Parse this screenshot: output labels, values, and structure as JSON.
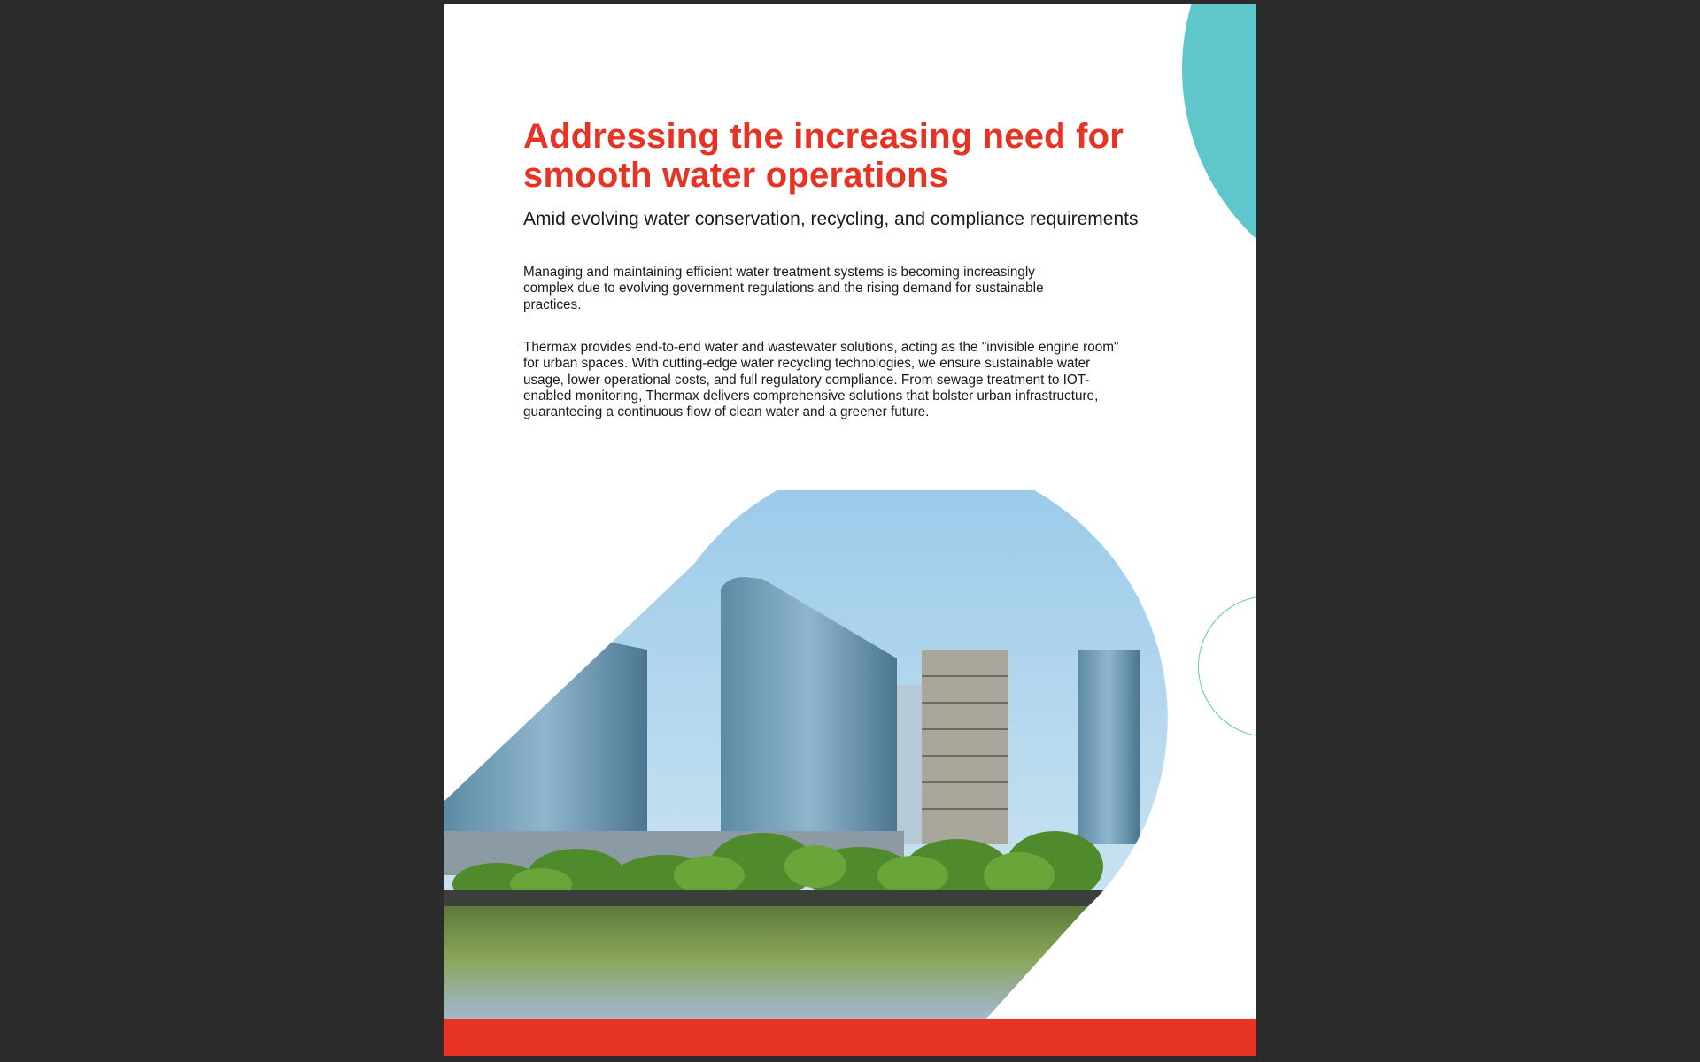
{
  "document": {
    "title": "Addressing the increasing need for smooth water operations",
    "subtitle": "Amid evolving water conservation, recycling, and compliance requirements",
    "paragraphs": [
      "Managing and maintaining efficient water treatment systems is becoming increasingly complex due to evolving government regulations and the rising demand for sustainable practices.",
      "Thermax provides end-to-end water and wastewater solutions, acting as the \"invisible engine room\" for urban spaces. With cutting-edge water recycling technologies, we ensure sustainable water usage, lower operational costs, and full regulatory compliance. From sewage treatment to IOT-enabled monitoring, Thermax delivers comprehensive solutions that bolster urban infrastructure, guaranteeing a continuous flow of clean water and a greener future."
    ],
    "image": "city-skyline-with-glass-towers-trees-and-water-reflection"
  },
  "colors": {
    "accent_red": "#e63323",
    "teal": "#5fc6cc",
    "viewer_bg": "#2b2b2b"
  }
}
